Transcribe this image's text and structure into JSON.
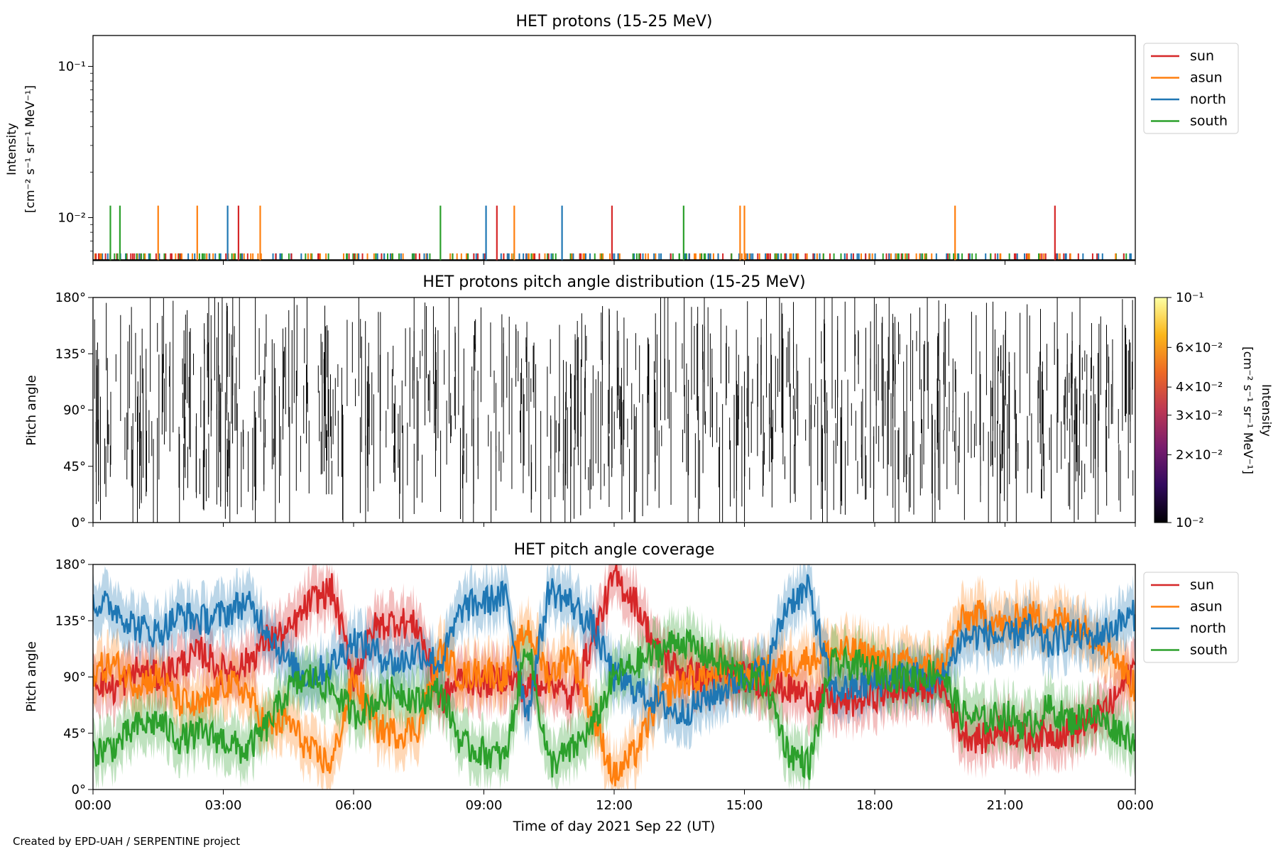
{
  "chart_data": [
    {
      "type": "line",
      "title": "HET protons (15-25 MeV)",
      "ylabel": "Intensity",
      "ylabel_units": "[cm⁻² s⁻¹ sr⁻¹ MeV⁻¹]",
      "yscale": "log",
      "ylim": [
        0.0052,
        0.16
      ],
      "yticks": [
        {
          "value": 0.1,
          "label": "10⁻¹"
        },
        {
          "value": 0.01,
          "label": "10⁻²"
        }
      ],
      "xlim_hours": [
        0,
        24
      ],
      "legend_placement": "outside-right",
      "baseline_value": 0.0058,
      "series": [
        {
          "name": "sun",
          "color": "#d62728",
          "spike_hours": [
            3.35,
            9.3,
            11.95,
            22.15
          ],
          "spike_value": 0.012
        },
        {
          "name": "asun",
          "color": "#ff7f0e",
          "spike_hours": [
            1.5,
            2.4,
            3.85,
            9.7,
            14.9,
            15.0,
            19.85
          ],
          "spike_value": 0.012
        },
        {
          "name": "north",
          "color": "#1f77b4",
          "spike_hours": [
            3.1,
            9.05,
            10.8
          ],
          "spike_value": 0.012
        },
        {
          "name": "south",
          "color": "#2ca02c",
          "spike_hours": [
            0.4,
            0.62,
            8.0,
            13.6
          ],
          "spike_value": 0.012
        }
      ]
    },
    {
      "type": "heatmap",
      "title": "HET protons pitch angle distribution (15-25 MeV)",
      "ylabel": "Pitch angle",
      "ylim": [
        0,
        180
      ],
      "yticks": [
        "0°",
        "45°",
        "90°",
        "135°",
        "180°"
      ],
      "xlim_hours": [
        0,
        24
      ],
      "colorbar": {
        "label": "Intensity",
        "units": "[cm⁻² s⁻¹ sr⁻¹ MeV⁻¹]",
        "scale": "log",
        "range": [
          0.01,
          0.1
        ],
        "ticks": [
          {
            "value": 0.1,
            "label": "10⁻¹"
          },
          {
            "value": 0.06,
            "label": "6×10⁻²"
          },
          {
            "value": 0.04,
            "label": "4×10⁻²"
          },
          {
            "value": 0.03,
            "label": "3×10⁻²"
          },
          {
            "value": 0.02,
            "label": "2×10⁻²"
          },
          {
            "value": 0.01,
            "label": "10⁻²"
          }
        ],
        "colors": [
          "#000004",
          "#320a5e",
          "#781c6d",
          "#bc3754",
          "#ed6925",
          "#fbb61a",
          "#fcffa4"
        ]
      }
    },
    {
      "type": "line",
      "title": "HET pitch angle coverage",
      "ylabel": "Pitch angle",
      "ylim": [
        0,
        180
      ],
      "yticks": [
        "0°",
        "45°",
        "90°",
        "135°",
        "180°"
      ],
      "xlabel": "Time of day 2021 Sep 22 (UT)",
      "xticks": [
        "00:00",
        "03:00",
        "06:00",
        "09:00",
        "12:00",
        "15:00",
        "18:00",
        "21:00",
        "00:00"
      ],
      "xlim_hours": [
        0,
        24
      ],
      "legend_placement": "outside-right",
      "band_halfwidth_deg": 20,
      "series": [
        {
          "name": "sun",
          "color": "#d62728",
          "x": [
            0,
            0.5,
            1,
            1.5,
            2,
            2.5,
            3,
            3.5,
            4,
            4.5,
            5,
            5.5,
            6,
            6.5,
            7,
            7.5,
            8,
            8.5,
            9,
            9.5,
            10,
            10.5,
            11,
            11.5,
            12,
            12.5,
            13,
            13.5,
            14,
            14.5,
            15,
            15.5,
            16,
            16.5,
            17,
            17.5,
            18,
            18.5,
            19,
            19.5,
            20,
            20.5,
            21,
            21.5,
            22,
            22.5,
            23,
            23.5,
            24
          ],
          "y": [
            90,
            80,
            95,
            90,
            100,
            110,
            95,
            100,
            120,
            125,
            150,
            160,
            90,
            130,
            135,
            130,
            70,
            90,
            85,
            90,
            80,
            90,
            70,
            120,
            170,
            150,
            110,
            95,
            90,
            90,
            90,
            85,
            80,
            75,
            70,
            70,
            75,
            80,
            80,
            85,
            45,
            40,
            50,
            40,
            45,
            45,
            55,
            70,
            100
          ]
        },
        {
          "name": "asun",
          "color": "#ff7f0e",
          "x": [
            0,
            0.5,
            1,
            1.5,
            2,
            2.5,
            3,
            3.5,
            4,
            4.5,
            5,
            5.5,
            6,
            6.5,
            7,
            7.5,
            8,
            8.5,
            9,
            9.5,
            10,
            10.5,
            11,
            11.5,
            12,
            12.5,
            13,
            13.5,
            14,
            14.5,
            15,
            15.5,
            16,
            16.5,
            17,
            17.5,
            18,
            18.5,
            19,
            19.5,
            20,
            20.5,
            21,
            21.5,
            22,
            22.5,
            23,
            23.5,
            24
          ],
          "y": [
            95,
            100,
            85,
            90,
            70,
            65,
            85,
            80,
            50,
            55,
            30,
            20,
            90,
            50,
            45,
            50,
            110,
            90,
            95,
            90,
            130,
            90,
            110,
            60,
            10,
            30,
            70,
            85,
            90,
            90,
            90,
            95,
            100,
            105,
            110,
            110,
            105,
            100,
            100,
            95,
            135,
            140,
            130,
            140,
            135,
            135,
            125,
            110,
            80
          ]
        },
        {
          "name": "north",
          "color": "#1f77b4",
          "x": [
            0,
            0.5,
            1,
            1.5,
            2,
            2.5,
            3,
            3.5,
            4,
            4.5,
            5,
            5.5,
            6,
            6.5,
            7,
            7.5,
            8,
            8.5,
            9,
            9.5,
            10,
            10.5,
            11,
            11.5,
            12,
            12.5,
            13,
            13.5,
            14,
            14.5,
            15,
            15.5,
            16,
            16.5,
            17,
            17.5,
            18,
            18.5,
            19,
            19.5,
            20,
            20.5,
            21,
            21.5,
            22,
            22.5,
            23,
            23.5,
            24
          ],
          "y": [
            150,
            145,
            130,
            125,
            140,
            135,
            140,
            150,
            130,
            100,
            90,
            100,
            120,
            110,
            100,
            110,
            100,
            145,
            150,
            155,
            60,
            160,
            150,
            130,
            90,
            80,
            70,
            60,
            70,
            80,
            90,
            95,
            150,
            160,
            80,
            80,
            85,
            90,
            90,
            85,
            120,
            125,
            120,
            130,
            115,
            125,
            120,
            130,
            140
          ]
        },
        {
          "name": "south",
          "color": "#2ca02c",
          "x": [
            0,
            0.5,
            1,
            1.5,
            2,
            2.5,
            3,
            3.5,
            4,
            4.5,
            5,
            5.5,
            6,
            6.5,
            7,
            7.5,
            8,
            8.5,
            9,
            9.5,
            10,
            10.5,
            11,
            11.5,
            12,
            12.5,
            13,
            13.5,
            14,
            14.5,
            15,
            15.5,
            16,
            16.5,
            17,
            17.5,
            18,
            18.5,
            19,
            19.5,
            20,
            20.5,
            21,
            21.5,
            22,
            22.5,
            23,
            23.5,
            24
          ],
          "y": [
            30,
            35,
            50,
            55,
            40,
            45,
            40,
            30,
            50,
            80,
            90,
            80,
            60,
            70,
            80,
            70,
            80,
            35,
            30,
            25,
            120,
            20,
            30,
            50,
            90,
            100,
            110,
            120,
            110,
            100,
            90,
            85,
            30,
            20,
            100,
            100,
            95,
            90,
            90,
            95,
            60,
            55,
            60,
            50,
            65,
            55,
            60,
            50,
            40
          ]
        }
      ]
    }
  ],
  "footer": "Created by EPD-UAH / SERPENTINE project"
}
